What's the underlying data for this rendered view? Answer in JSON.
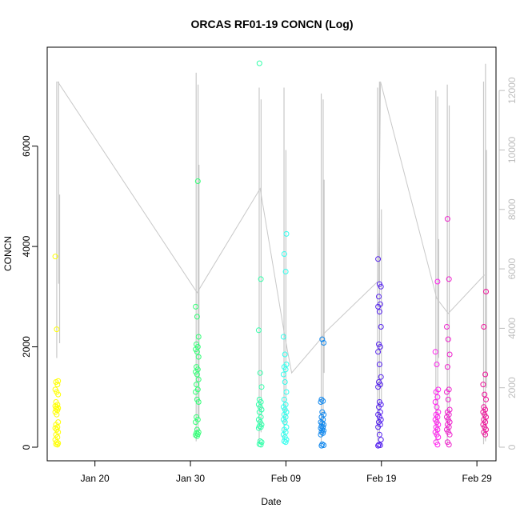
{
  "chart_data": {
    "type": "scatter",
    "title": "ORCAS RF01-19 CONCN (Log)",
    "xlabel": "Date",
    "ylabel": "CONCN",
    "x_range": [
      "2016-01-15",
      "2016-03-02"
    ],
    "x_ticks": [
      {
        "date": "2016-01-20",
        "label": "Jan 20"
      },
      {
        "date": "2016-01-30",
        "label": "Jan 30"
      },
      {
        "date": "2016-02-09",
        "label": "Feb 09"
      },
      {
        "date": "2016-02-19",
        "label": "Feb 19"
      },
      {
        "date": "2016-02-29",
        "label": "Feb 29"
      }
    ],
    "ylim": [
      0,
      7700
    ],
    "y_ticks": [
      0,
      2000,
      4000,
      6000
    ],
    "y2lim": [
      0,
      13000
    ],
    "y2_ticks": [
      0,
      2000,
      4000,
      6000,
      8000,
      10000,
      12000
    ],
    "secondary_line_color": "#c8c8c8",
    "secondary_axis_color": "#bdbdbd",
    "grid": false,
    "flights": [
      {
        "date": "2016-01-16.0",
        "color": "#ffff00",
        "values": [
          3800,
          2350,
          1320,
          1300,
          1250,
          1150,
          1100,
          1050,
          900,
          850,
          820,
          800,
          780,
          760,
          740,
          700,
          650,
          500,
          450,
          400,
          380,
          350,
          300,
          250,
          200,
          150,
          100,
          80,
          60,
          50
        ]
      },
      {
        "date": "2016-01-30.7",
        "color": "#33ff77",
        "values": [
          5300,
          2800,
          2600,
          2200,
          2050,
          2000,
          1950,
          1900,
          1800,
          1600,
          1550,
          1500,
          1450,
          1350,
          1250,
          1150,
          1100,
          950,
          900,
          600,
          550,
          500,
          350,
          300,
          280,
          260,
          240,
          220
        ]
      },
      {
        "date": "2016-02-06.3",
        "color": "#33ffaa",
        "values": [
          7650,
          3350,
          2330,
          1480,
          1200,
          950,
          900,
          850,
          800,
          750,
          700,
          600,
          550,
          500,
          450,
          420,
          400,
          380,
          120,
          100,
          60,
          50
        ]
      },
      {
        "date": "2016-02-08.9",
        "color": "#33ffee",
        "values": [
          4250,
          3850,
          3500,
          2200,
          1850,
          1650,
          1600,
          1550,
          1450,
          1300,
          1100,
          950,
          850,
          800,
          750,
          700,
          650,
          600,
          550,
          500,
          400,
          350,
          300,
          250,
          200,
          150,
          120,
          100
        ]
      },
      {
        "date": "2016-02-12.8",
        "color": "#1188ee",
        "values": [
          2150,
          2080,
          950,
          920,
          900,
          700,
          650,
          600,
          550,
          500,
          480,
          450,
          420,
          400,
          380,
          350,
          330,
          300,
          280,
          250,
          60,
          40,
          30
        ]
      },
      {
        "date": "2016-02-18.8",
        "color": "#5522ee",
        "values": [
          3750,
          3250,
          3200,
          3000,
          2850,
          2800,
          2700,
          2400,
          2050,
          2000,
          1900,
          1650,
          1400,
          1300,
          1250,
          1200,
          900,
          850,
          800,
          700,
          650,
          600,
          550,
          500,
          450,
          400,
          250,
          150,
          50,
          40,
          30
        ]
      },
      {
        "date": "2016-02-24.8",
        "color": "#ff22ee",
        "values": [
          3300,
          1900,
          1650,
          1150,
          1100,
          1000,
          900,
          800,
          700,
          650,
          600,
          550,
          500,
          450,
          400,
          350,
          300,
          250,
          200,
          100,
          50
        ]
      },
      {
        "date": "2016-02-26.0",
        "color": "#ee22cc",
        "values": [
          4550,
          3350,
          2400,
          2150,
          1850,
          1600,
          1150,
          1100,
          950,
          750,
          700,
          650,
          600,
          550,
          500,
          450,
          400,
          350,
          300,
          250,
          100,
          50
        ]
      },
      {
        "date": "2016-02-29.8",
        "color": "#ee1199",
        "values": [
          3100,
          2400,
          1450,
          1250,
          1050,
          950,
          800,
          750,
          700,
          650,
          600,
          550,
          500,
          450,
          400,
          350,
          300,
          250
        ]
      }
    ],
    "secondary_series": {
      "name": "",
      "points": [
        {
          "date": "2016-01-16.1",
          "y2": 12300
        },
        {
          "date": "2016-01-30.7",
          "y2": 5200
        },
        {
          "date": "2016-02-06.3",
          "y2": 8700
        },
        {
          "date": "2016-02-08.9",
          "y2": 3700
        },
        {
          "date": "2016-02-09.6",
          "y2": 2500
        },
        {
          "date": "2016-02-12.8",
          "y2": 3700
        },
        {
          "date": "2016-02-12.9",
          "y2": 3800
        },
        {
          "date": "2016-02-18.7",
          "y2": 5600
        },
        {
          "date": "2016-02-18.9",
          "y2": 12300
        },
        {
          "date": "2016-02-24.8",
          "y2": 5000
        },
        {
          "date": "2016-02-26.0",
          "y2": 4500
        },
        {
          "date": "2016-02-29.8",
          "y2": 5800
        }
      ],
      "spikes": [
        {
          "date": "2016-01-16.0",
          "top": 12300,
          "bottom": 3000
        },
        {
          "date": "2016-01-16.2",
          "top": 12300,
          "bottom": 5500
        },
        {
          "date": "2016-01-16.3",
          "top": 8500,
          "bottom": 3500
        },
        {
          "date": "2016-01-30.6",
          "top": 12600,
          "bottom": 200
        },
        {
          "date": "2016-01-30.8",
          "top": 12200,
          "bottom": 500
        },
        {
          "date": "2016-01-30.9",
          "top": 9500,
          "bottom": 1000
        },
        {
          "date": "2016-02-06.2",
          "top": 12100,
          "bottom": 100
        },
        {
          "date": "2016-02-06.4",
          "top": 11700,
          "bottom": 500
        },
        {
          "date": "2016-02-08.8",
          "top": 12100,
          "bottom": 300
        },
        {
          "date": "2016-02-09.0",
          "top": 10000,
          "bottom": 800
        },
        {
          "date": "2016-02-12.7",
          "top": 11900,
          "bottom": 100
        },
        {
          "date": "2016-02-12.9",
          "top": 11700,
          "bottom": 500
        },
        {
          "date": "2016-02-13.0",
          "top": 9000,
          "bottom": 2500
        },
        {
          "date": "2016-02-18.6",
          "top": 12100,
          "bottom": 200
        },
        {
          "date": "2016-02-18.8",
          "top": 12300,
          "bottom": 400
        },
        {
          "date": "2016-02-19.0",
          "top": 8000,
          "bottom": 1500
        },
        {
          "date": "2016-02-24.7",
          "top": 12000,
          "bottom": 200
        },
        {
          "date": "2016-02-24.9",
          "top": 11800,
          "bottom": 500
        },
        {
          "date": "2016-02-25.0",
          "top": 7000,
          "bottom": 3000
        },
        {
          "date": "2016-02-25.9",
          "top": 12200,
          "bottom": 100
        },
        {
          "date": "2016-02-26.1",
          "top": 11500,
          "bottom": 500
        },
        {
          "date": "2016-02-29.7",
          "top": 12300,
          "bottom": 100
        },
        {
          "date": "2016-02-29.9",
          "top": 12900,
          "bottom": 200
        },
        {
          "date": "2016-03-01.0",
          "top": 10000,
          "bottom": 2000
        }
      ]
    }
  }
}
